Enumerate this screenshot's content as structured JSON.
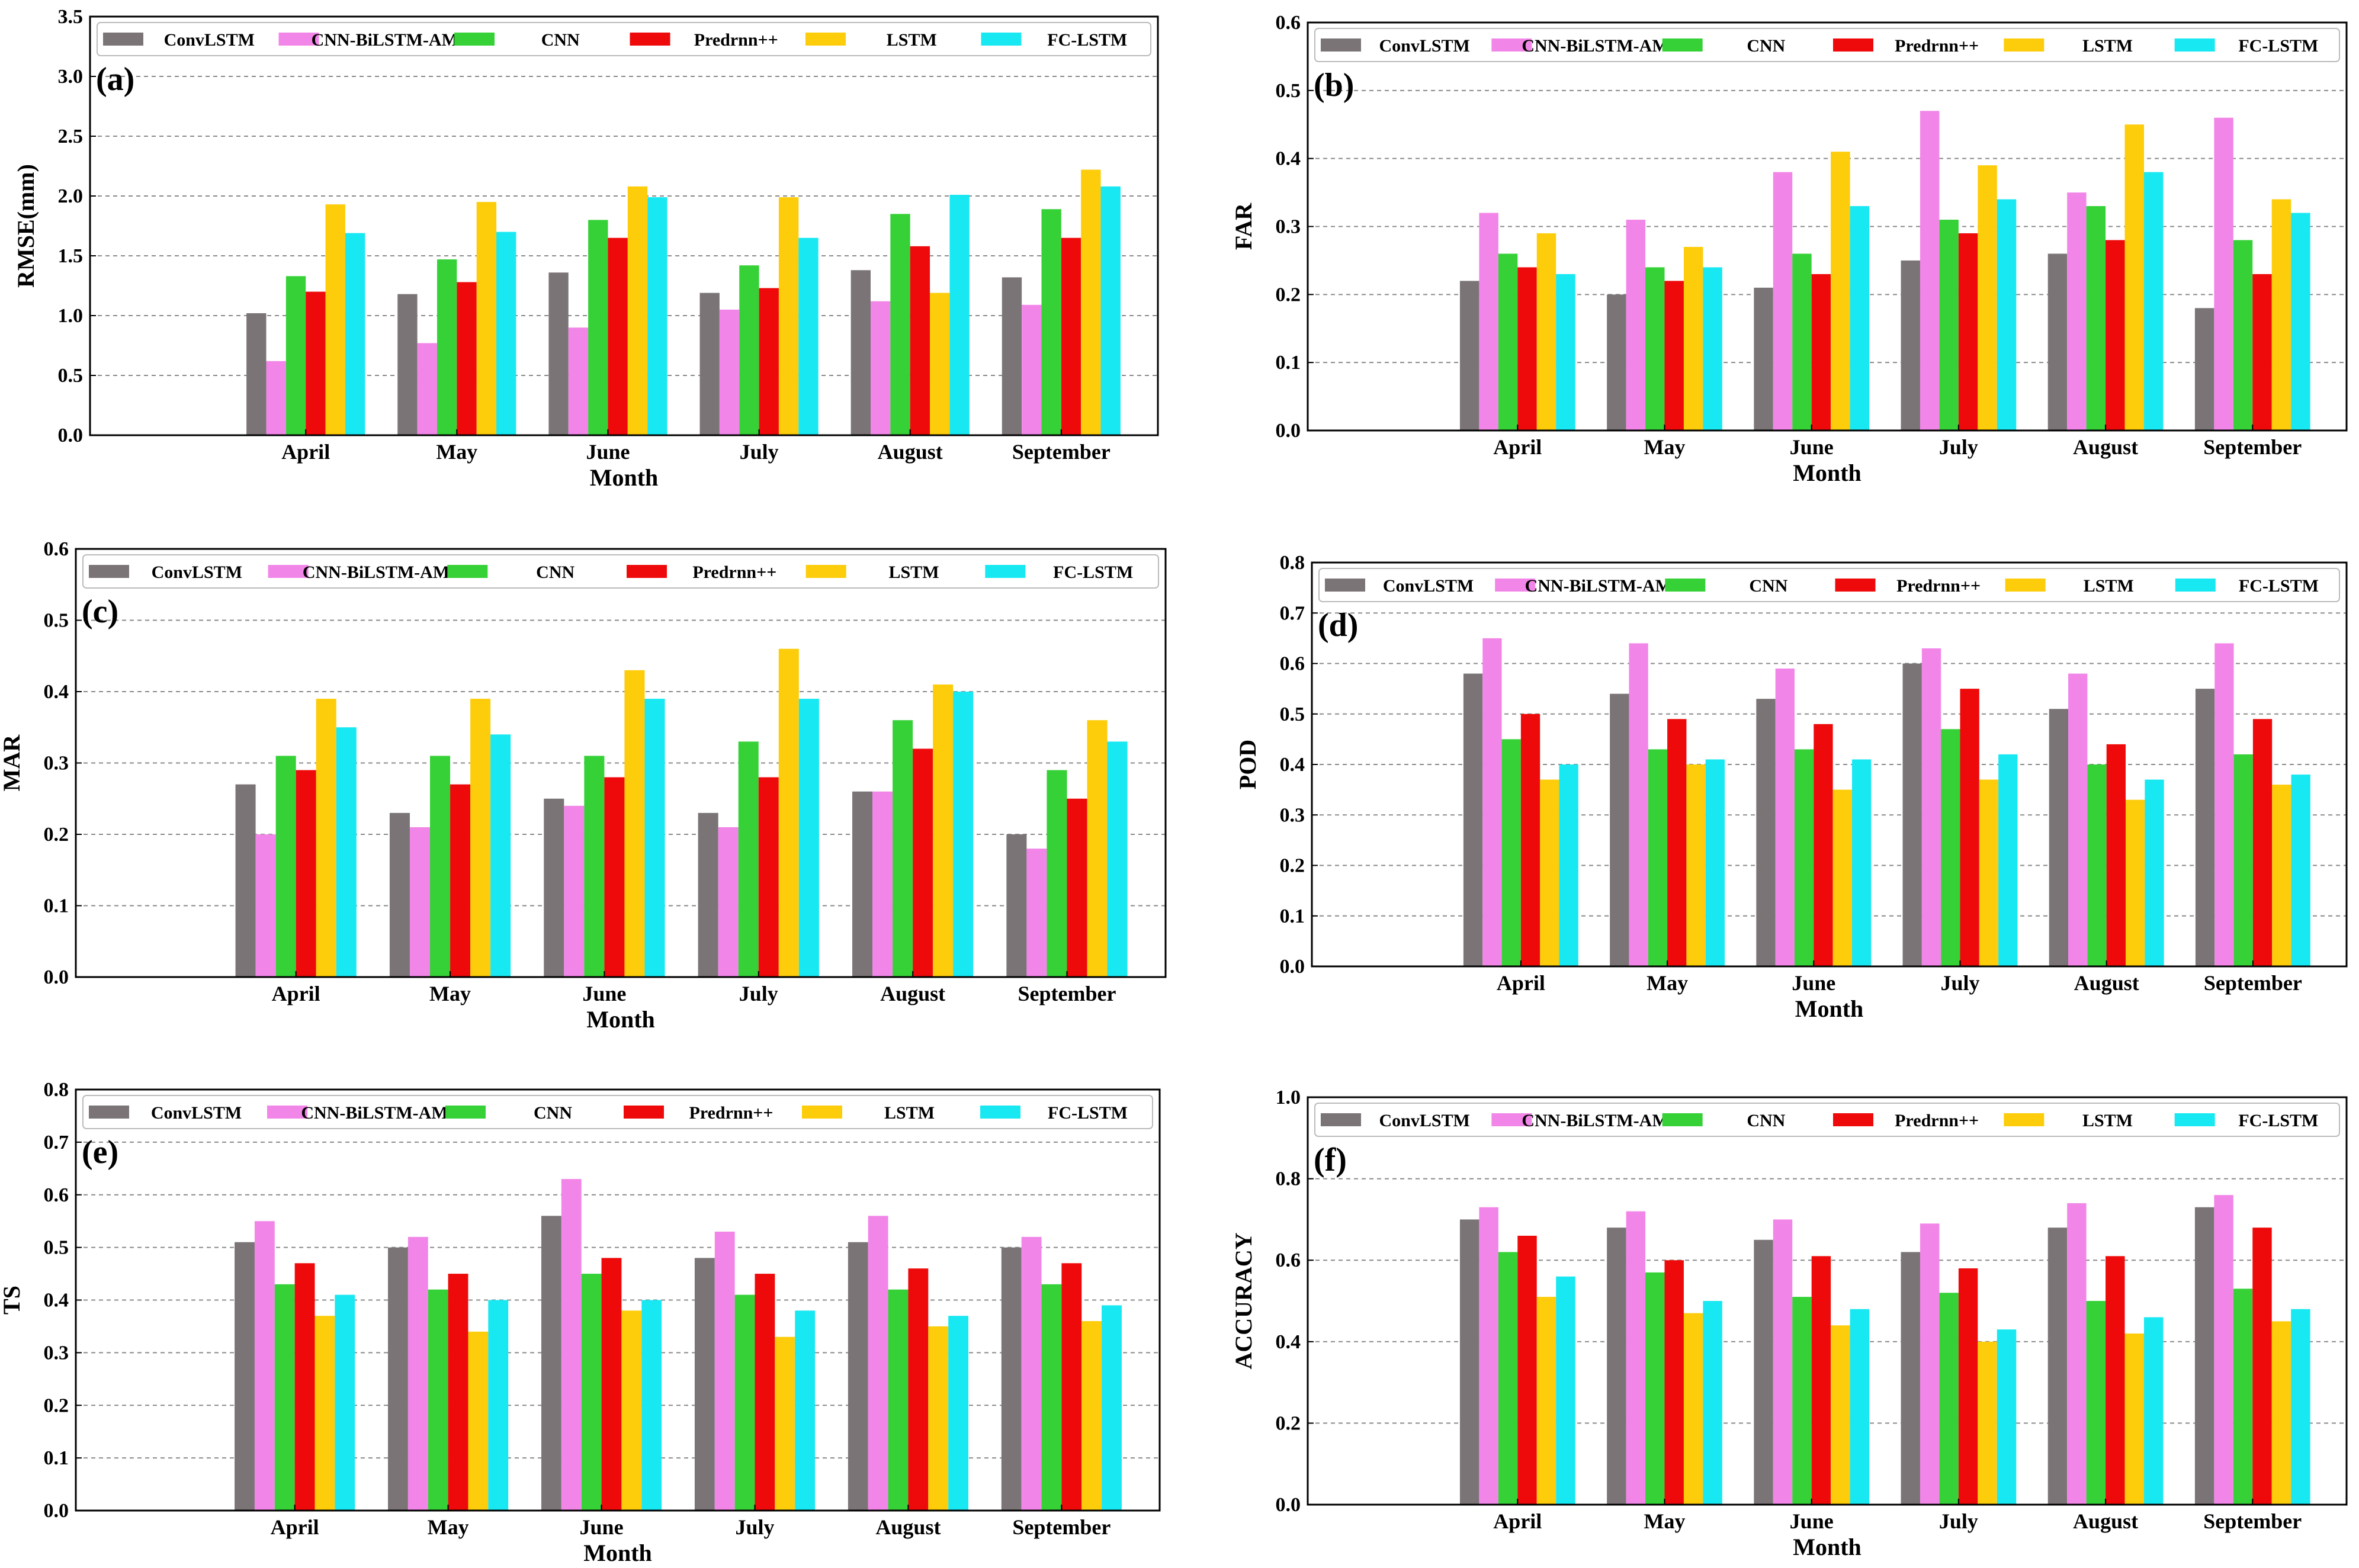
{
  "colors": {
    "ConvLSTM": "#7a7477",
    "CNN-BiLSTM-AM": "#f286e8",
    "CNN": "#35d137",
    "Predrnn++": "#ee0a0a",
    "LSTM": "#fdcc0a",
    "FC-LSTM": "#18e8f2"
  },
  "chart_data": [
    {
      "type": "bar",
      "panel": "(a)",
      "ylabel": "RMSE(mm)",
      "xlabel": "Month",
      "ylim": [
        0,
        3.5
      ],
      "yticks": [
        "0.0",
        "0.5",
        "1.0",
        "1.5",
        "2.0",
        "2.5",
        "3.0",
        "3.5"
      ],
      "categories": [
        "April",
        "May",
        "June",
        "July",
        "August",
        "September"
      ],
      "series": [
        {
          "name": "ConvLSTM",
          "values": [
            1.02,
            1.18,
            1.36,
            1.19,
            1.38,
            1.32
          ]
        },
        {
          "name": "CNN-BiLSTM-AM",
          "values": [
            0.62,
            0.77,
            0.9,
            1.05,
            1.12,
            1.09
          ]
        },
        {
          "name": "CNN",
          "values": [
            1.33,
            1.47,
            1.8,
            1.42,
            1.85,
            1.89
          ]
        },
        {
          "name": "Predrnn++",
          "values": [
            1.2,
            1.28,
            1.65,
            1.23,
            1.58,
            1.65
          ]
        },
        {
          "name": "LSTM",
          "values": [
            1.93,
            1.95,
            2.08,
            1.99,
            1.19,
            2.22
          ]
        },
        {
          "name": "FC-LSTM",
          "values": [
            1.69,
            1.7,
            1.99,
            1.65,
            2.01,
            2.08
          ]
        }
      ]
    },
    {
      "type": "bar",
      "panel": "(b)",
      "ylabel": "FAR",
      "xlabel": "Month",
      "ylim": [
        0,
        0.6
      ],
      "yticks": [
        "0.0",
        "0.1",
        "0.2",
        "0.3",
        "0.4",
        "0.5",
        "0.6"
      ],
      "categories": [
        "April",
        "May",
        "June",
        "July",
        "August",
        "September"
      ],
      "series": [
        {
          "name": "ConvLSTM",
          "values": [
            0.22,
            0.2,
            0.21,
            0.25,
            0.26,
            0.18
          ]
        },
        {
          "name": "CNN-BiLSTM-AM",
          "values": [
            0.32,
            0.31,
            0.38,
            0.47,
            0.35,
            0.46
          ]
        },
        {
          "name": "CNN",
          "values": [
            0.26,
            0.24,
            0.26,
            0.31,
            0.33,
            0.28
          ]
        },
        {
          "name": "Predrnn++",
          "values": [
            0.24,
            0.22,
            0.23,
            0.29,
            0.28,
            0.23
          ]
        },
        {
          "name": "LSTM",
          "values": [
            0.29,
            0.27,
            0.41,
            0.39,
            0.45,
            0.34
          ]
        },
        {
          "name": "FC-LSTM",
          "values": [
            0.23,
            0.24,
            0.33,
            0.34,
            0.38,
            0.32
          ]
        }
      ]
    },
    {
      "type": "bar",
      "panel": "(c)",
      "ylabel": "MAR",
      "xlabel": "Month",
      "ylim": [
        0,
        0.6
      ],
      "yticks": [
        "0.0",
        "0.1",
        "0.2",
        "0.3",
        "0.4",
        "0.5",
        "0.6"
      ],
      "categories": [
        "April",
        "May",
        "June",
        "July",
        "August",
        "September"
      ],
      "series": [
        {
          "name": "ConvLSTM",
          "values": [
            0.27,
            0.23,
            0.25,
            0.23,
            0.26,
            0.2
          ]
        },
        {
          "name": "CNN-BiLSTM-AM",
          "values": [
            0.2,
            0.21,
            0.24,
            0.21,
            0.26,
            0.18
          ]
        },
        {
          "name": "CNN",
          "values": [
            0.31,
            0.31,
            0.31,
            0.33,
            0.36,
            0.29
          ]
        },
        {
          "name": "Predrnn++",
          "values": [
            0.29,
            0.27,
            0.28,
            0.28,
            0.32,
            0.25
          ]
        },
        {
          "name": "LSTM",
          "values": [
            0.39,
            0.39,
            0.43,
            0.46,
            0.41,
            0.36
          ]
        },
        {
          "name": "FC-LSTM",
          "values": [
            0.35,
            0.34,
            0.39,
            0.39,
            0.4,
            0.33
          ]
        }
      ]
    },
    {
      "type": "bar",
      "panel": "(d)",
      "ylabel": "POD",
      "xlabel": "Month",
      "ylim": [
        0,
        0.8
      ],
      "yticks": [
        "0.0",
        "0.1",
        "0.2",
        "0.3",
        "0.4",
        "0.5",
        "0.6",
        "0.7",
        "0.8"
      ],
      "categories": [
        "April",
        "May",
        "June",
        "July",
        "August",
        "September"
      ],
      "series": [
        {
          "name": "ConvLSTM",
          "values": [
            0.58,
            0.54,
            0.53,
            0.6,
            0.51,
            0.55
          ]
        },
        {
          "name": "CNN-BiLSTM-AM",
          "values": [
            0.65,
            0.64,
            0.59,
            0.63,
            0.58,
            0.64
          ]
        },
        {
          "name": "CNN",
          "values": [
            0.45,
            0.43,
            0.43,
            0.47,
            0.4,
            0.42
          ]
        },
        {
          "name": "Predrnn++",
          "values": [
            0.5,
            0.49,
            0.48,
            0.55,
            0.44,
            0.49
          ]
        },
        {
          "name": "LSTM",
          "values": [
            0.37,
            0.4,
            0.35,
            0.37,
            0.33,
            0.36
          ]
        },
        {
          "name": "FC-LSTM",
          "values": [
            0.4,
            0.41,
            0.41,
            0.42,
            0.37,
            0.38
          ]
        }
      ]
    },
    {
      "type": "bar",
      "panel": "(e)",
      "ylabel": "TS",
      "xlabel": "Month",
      "ylim": [
        0,
        0.8
      ],
      "yticks": [
        "0.0",
        "0.1",
        "0.2",
        "0.3",
        "0.4",
        "0.5",
        "0.6",
        "0.7",
        "0.8"
      ],
      "categories": [
        "April",
        "May",
        "June",
        "July",
        "August",
        "September"
      ],
      "series": [
        {
          "name": "ConvLSTM",
          "values": [
            0.51,
            0.5,
            0.56,
            0.48,
            0.51,
            0.5
          ]
        },
        {
          "name": "CNN-BiLSTM-AM",
          "values": [
            0.55,
            0.52,
            0.63,
            0.53,
            0.56,
            0.52
          ]
        },
        {
          "name": "CNN",
          "values": [
            0.43,
            0.42,
            0.45,
            0.41,
            0.42,
            0.43
          ]
        },
        {
          "name": "Predrnn++",
          "values": [
            0.47,
            0.45,
            0.48,
            0.45,
            0.46,
            0.47
          ]
        },
        {
          "name": "LSTM",
          "values": [
            0.37,
            0.34,
            0.38,
            0.33,
            0.35,
            0.36
          ]
        },
        {
          "name": "FC-LSTM",
          "values": [
            0.41,
            0.4,
            0.4,
            0.38,
            0.37,
            0.39
          ]
        }
      ]
    },
    {
      "type": "bar",
      "panel": "(f)",
      "ylabel": "ACCURACY",
      "xlabel": "Month",
      "ylim": [
        0,
        1.0
      ],
      "yticks": [
        "0.0",
        "0.2",
        "0.4",
        "0.6",
        "0.8",
        "1.0"
      ],
      "categories": [
        "April",
        "May",
        "June",
        "July",
        "August",
        "September"
      ],
      "series": [
        {
          "name": "ConvLSTM",
          "values": [
            0.7,
            0.68,
            0.65,
            0.62,
            0.68,
            0.73
          ]
        },
        {
          "name": "CNN-BiLSTM-AM",
          "values": [
            0.73,
            0.72,
            0.7,
            0.69,
            0.74,
            0.76
          ]
        },
        {
          "name": "CNN",
          "values": [
            0.62,
            0.57,
            0.51,
            0.52,
            0.5,
            0.53
          ]
        },
        {
          "name": "Predrnn++",
          "values": [
            0.66,
            0.6,
            0.61,
            0.58,
            0.61,
            0.68
          ]
        },
        {
          "name": "LSTM",
          "values": [
            0.51,
            0.47,
            0.44,
            0.4,
            0.42,
            0.45
          ]
        },
        {
          "name": "FC-LSTM",
          "values": [
            0.56,
            0.5,
            0.48,
            0.43,
            0.46,
            0.48
          ]
        }
      ]
    }
  ]
}
